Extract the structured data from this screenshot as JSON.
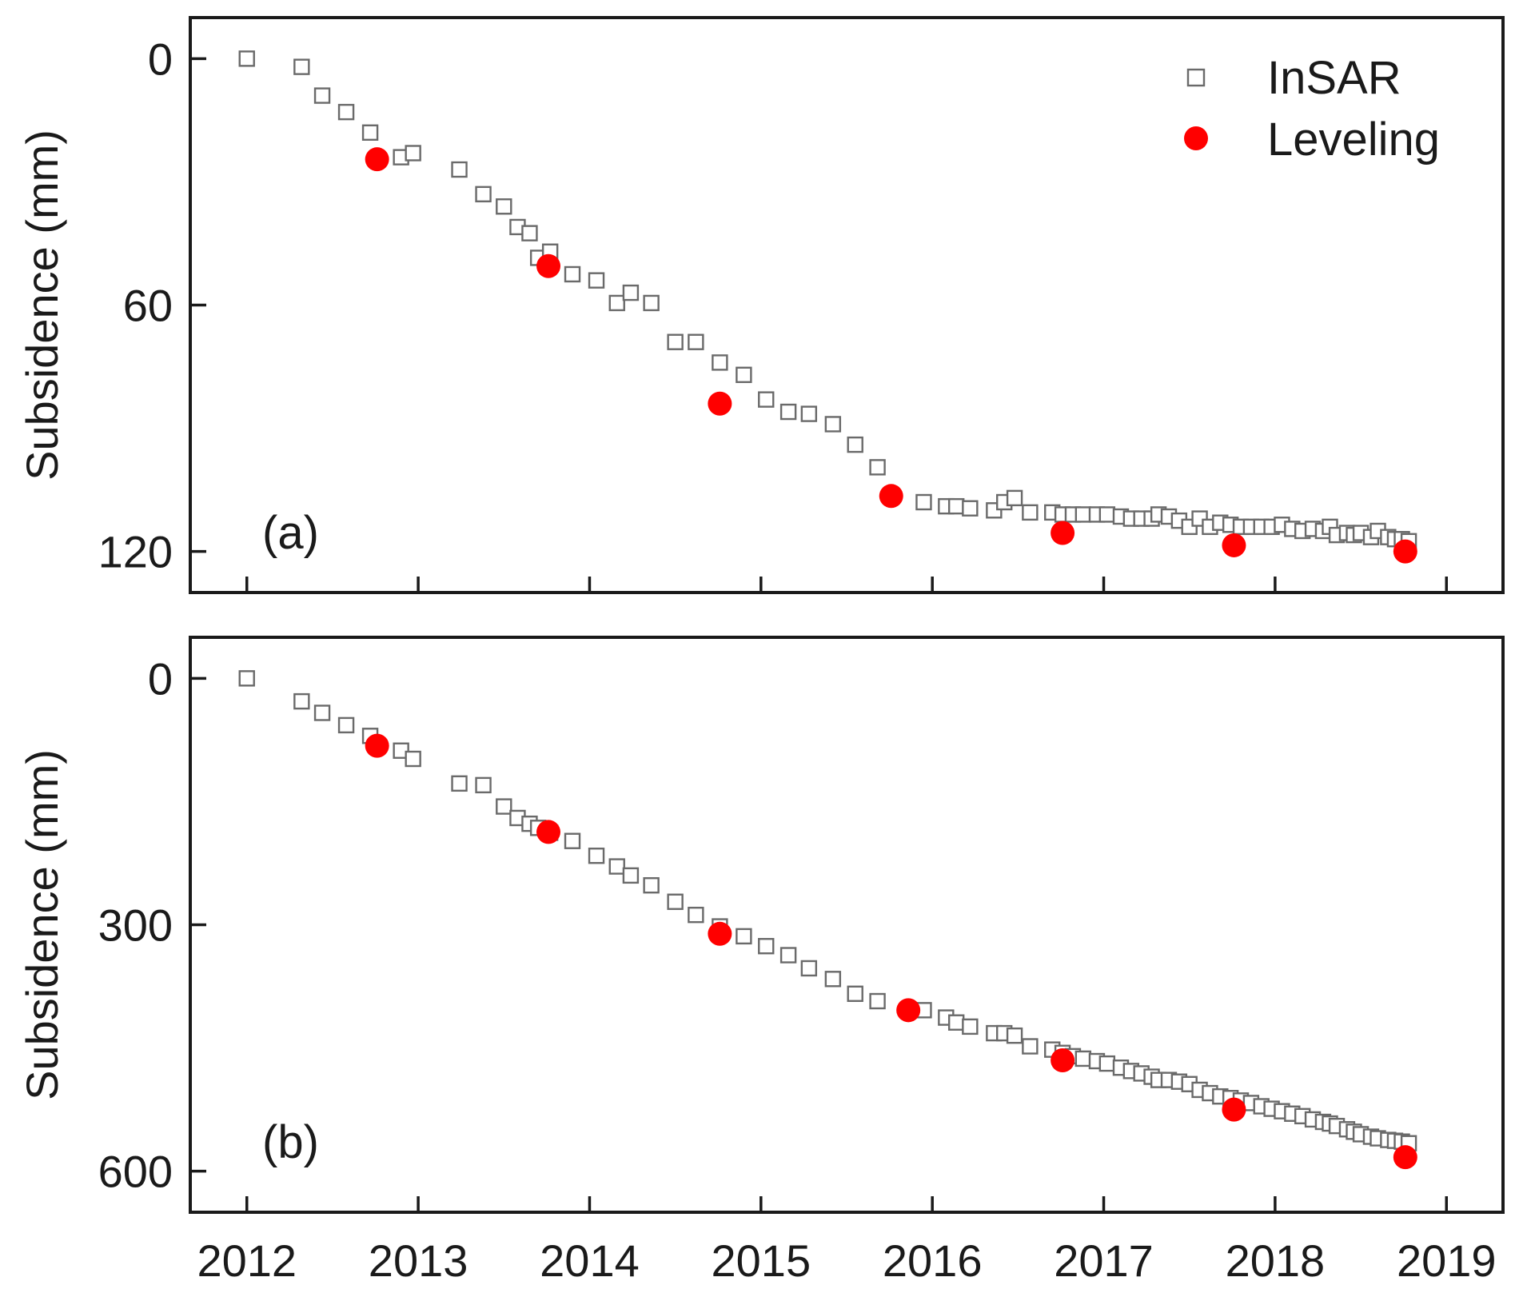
{
  "colors": {
    "insar_stroke": "#6a6a6a",
    "leveling_fill": "#ff0000",
    "axis": "#1a1a1a"
  },
  "legend": {
    "placement": "top-right",
    "insar_label": "InSAR",
    "leveling_label": "Leveling"
  },
  "x_axis": {
    "ticks": [
      2012,
      2013,
      2014,
      2015,
      2016,
      2017,
      2018,
      2019
    ],
    "tick_labels": [
      "2012",
      "2013",
      "2014",
      "2015",
      "2016",
      "2017",
      "2018",
      "2019"
    ]
  },
  "chart_data": [
    {
      "type": "scatter",
      "panel_label": "(a)",
      "ylabel": "Subsidence (mm)",
      "xlim": [
        2011.67,
        2019.33
      ],
      "ylim": [
        -10,
        130
      ],
      "y_inverted": true,
      "y_ticks": [
        0,
        60,
        120
      ],
      "y_tick_labels": [
        "0",
        "60",
        "120"
      ],
      "series": [
        {
          "name": "InSAR",
          "marker": "open-square",
          "x": [
            2012.0,
            2012.32,
            2012.44,
            2012.58,
            2012.72,
            2012.9,
            2012.97,
            2013.24,
            2013.38,
            2013.5,
            2013.58,
            2013.65,
            2013.7,
            2013.77,
            2013.9,
            2014.04,
            2014.16,
            2014.24,
            2014.36,
            2014.5,
            2014.62,
            2014.76,
            2014.9,
            2015.03,
            2015.16,
            2015.28,
            2015.42,
            2015.55,
            2015.68,
            2015.95,
            2016.08,
            2016.14,
            2016.22,
            2016.36,
            2016.42,
            2016.48,
            2016.57,
            2016.7,
            2016.76,
            2016.82,
            2016.88,
            2016.96,
            2017.02,
            2017.1,
            2017.16,
            2017.22,
            2017.28,
            2017.32,
            2017.38,
            2017.44,
            2017.5,
            2017.56,
            2017.62,
            2017.68,
            2017.74,
            2017.8,
            2017.86,
            2017.92,
            2017.98,
            2018.04,
            2018.1,
            2018.16,
            2018.22,
            2018.28,
            2018.32,
            2018.36,
            2018.42,
            2018.46,
            2018.5,
            2018.56,
            2018.6,
            2018.66,
            2018.7,
            2018.74,
            2018.78
          ],
          "y": [
            0,
            2,
            9,
            13,
            18,
            24,
            23,
            27,
            33,
            36,
            41,
            42.5,
            48.5,
            47,
            52.5,
            54,
            59.5,
            57,
            59.5,
            69,
            69,
            74,
            77,
            83,
            86,
            86.5,
            89,
            94,
            99.5,
            108,
            109,
            109,
            109.5,
            110,
            108,
            107,
            110.5,
            110.5,
            111,
            111,
            111,
            111,
            111,
            111.5,
            112,
            112,
            112,
            111,
            111.5,
            112.5,
            114,
            112,
            114,
            113,
            113.5,
            114,
            114,
            114,
            114,
            113.5,
            114.5,
            115,
            114.5,
            115,
            114,
            116,
            115.5,
            116,
            115.5,
            116.5,
            115,
            116.5,
            117,
            117,
            117.5
          ]
        },
        {
          "name": "Leveling",
          "marker": "filled-circle",
          "x": [
            2012.76,
            2013.76,
            2014.76,
            2015.76,
            2016.76,
            2017.76,
            2018.76
          ],
          "y": [
            24.5,
            50.5,
            84,
            106.5,
            115.5,
            118.5,
            120
          ]
        }
      ]
    },
    {
      "type": "scatter",
      "panel_label": "(b)",
      "ylabel": "Subsidence (mm)",
      "xlim": [
        2011.67,
        2019.33
      ],
      "ylim": [
        -50,
        650
      ],
      "y_inverted": true,
      "y_ticks": [
        0,
        300,
        600
      ],
      "y_tick_labels": [
        "0",
        "300",
        "600"
      ],
      "series": [
        {
          "name": "InSAR",
          "marker": "open-square",
          "x": [
            2012.0,
            2012.32,
            2012.44,
            2012.58,
            2012.72,
            2012.9,
            2012.97,
            2013.24,
            2013.38,
            2013.5,
            2013.58,
            2013.65,
            2013.7,
            2013.77,
            2013.9,
            2014.04,
            2014.16,
            2014.24,
            2014.36,
            2014.5,
            2014.62,
            2014.76,
            2014.9,
            2015.03,
            2015.16,
            2015.28,
            2015.42,
            2015.55,
            2015.68,
            2015.95,
            2016.08,
            2016.14,
            2016.22,
            2016.36,
            2016.42,
            2016.48,
            2016.57,
            2016.7,
            2016.76,
            2016.82,
            2016.88,
            2016.96,
            2017.02,
            2017.1,
            2017.16,
            2017.22,
            2017.28,
            2017.32,
            2017.38,
            2017.44,
            2017.5,
            2017.56,
            2017.62,
            2017.68,
            2017.74,
            2017.8,
            2017.86,
            2017.92,
            2017.98,
            2018.04,
            2018.1,
            2018.16,
            2018.22,
            2018.28,
            2018.32,
            2018.36,
            2018.42,
            2018.46,
            2018.5,
            2018.56,
            2018.6,
            2018.66,
            2018.7,
            2018.74,
            2018.78
          ],
          "y": [
            0,
            28,
            42,
            57,
            70,
            88,
            98,
            128,
            130,
            156,
            170,
            177,
            182,
            188,
            198,
            216,
            229,
            240,
            252,
            272,
            288,
            302,
            314,
            326,
            337,
            353,
            366,
            384,
            393,
            404,
            413,
            419,
            424,
            432,
            432,
            435,
            448,
            452,
            456,
            460,
            463,
            466,
            469,
            474,
            478,
            481,
            485,
            489,
            489,
            491,
            494,
            501,
            505,
            509,
            511,
            514,
            517,
            521,
            524,
            527,
            530,
            533,
            537,
            540,
            542,
            545,
            549,
            552,
            555,
            558,
            560,
            562,
            563,
            564,
            566
          ]
        },
        {
          "name": "Leveling",
          "marker": "filled-circle",
          "x": [
            2012.76,
            2013.76,
            2014.76,
            2015.86,
            2016.76,
            2017.76,
            2018.76
          ],
          "y": [
            82,
            187,
            311,
            404,
            465,
            525,
            583
          ]
        }
      ]
    }
  ]
}
